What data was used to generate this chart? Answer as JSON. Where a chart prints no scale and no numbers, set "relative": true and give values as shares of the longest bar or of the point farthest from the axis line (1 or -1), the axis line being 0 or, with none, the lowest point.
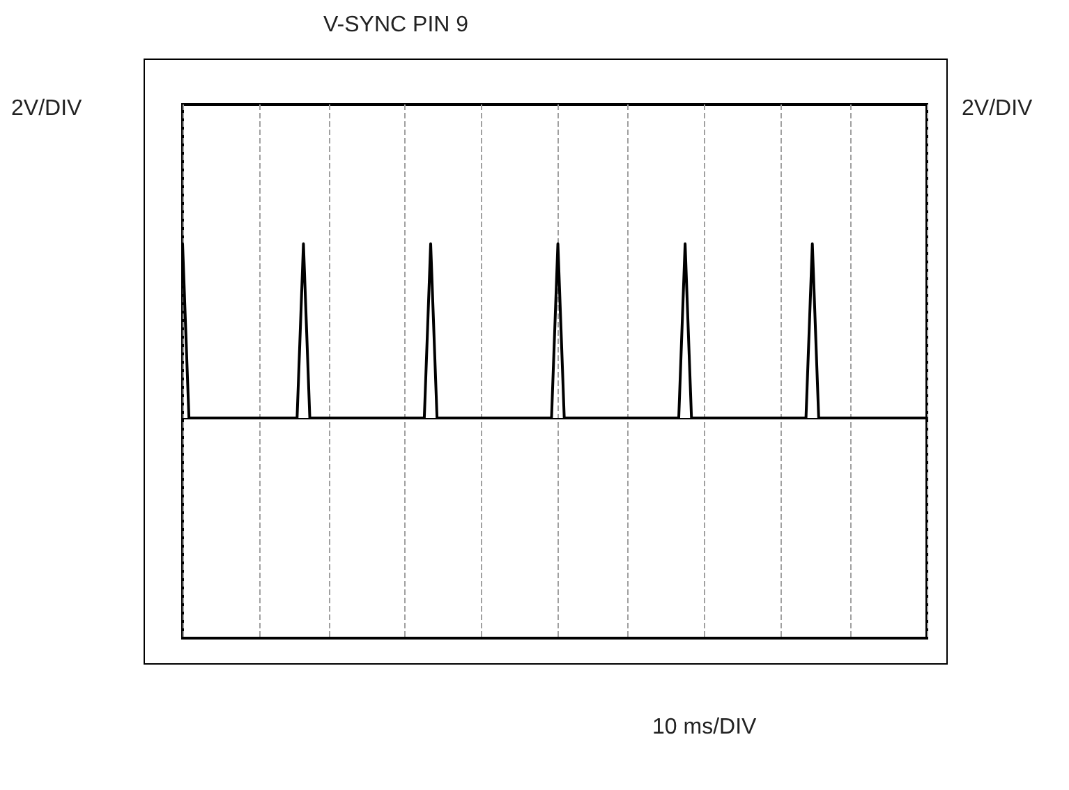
{
  "chart_data": {
    "type": "line",
    "title": "V-SYNC PIN 9",
    "annotations": [
      "2V/DIV",
      "2V/DIV",
      "10 ms/DIV"
    ],
    "relative": true,
    "grid": "x",
    "marker": "none",
    "line_style": "solid",
    "categories": [
      null,
      null,
      null,
      null,
      null,
      null,
      null,
      null,
      null,
      null,
      null,
      null,
      null,
      null,
      null,
      null,
      null,
      null,
      null,
      null,
      null,
      null,
      null,
      null,
      null,
      null,
      null,
      null,
      null,
      null,
      null,
      null,
      null,
      null,
      null,
      null,
      null,
      null,
      null,
      null,
      null,
      null,
      null,
      null,
      null,
      null,
      null,
      null,
      null,
      null,
      null,
      null,
      null,
      null,
      null,
      null,
      null,
      null,
      null,
      null,
      null,
      null,
      null,
      null,
      null,
      null,
      null,
      null,
      null,
      null,
      null,
      null,
      null,
      null,
      null,
      null,
      null,
      null,
      null,
      null,
      null,
      null,
      null,
      null,
      null,
      null,
      null,
      null,
      null,
      null,
      null,
      null,
      null,
      null,
      null,
      null,
      null,
      null,
      null,
      null,
      null,
      null,
      null,
      null,
      null,
      null,
      null,
      null,
      null,
      null,
      null,
      null,
      null,
      null,
      null,
      null,
      null,
      null
    ],
    "series": [
      {
        "color": "#000000",
        "values": [
          1,
          0,
          0,
          0,
          0,
          0,
          0,
          0,
          0,
          0,
          0,
          0,
          0,
          0,
          0,
          0,
          0,
          0,
          0,
          1,
          0,
          0,
          0,
          0,
          0,
          0,
          0,
          0,
          0,
          0,
          0,
          0,
          0,
          0,
          0,
          0,
          0,
          0,
          0,
          1,
          0,
          0,
          0,
          0,
          0,
          0,
          0,
          0,
          0,
          0,
          0,
          0,
          0,
          0,
          0,
          0,
          0,
          0,
          0,
          1,
          0,
          0,
          0,
          0,
          0,
          0,
          0,
          0,
          0,
          0,
          0,
          0,
          0,
          0,
          0,
          0,
          0,
          0,
          0,
          1,
          0,
          0,
          0,
          0,
          0,
          0,
          0,
          0,
          0,
          0,
          0,
          0,
          0,
          0,
          0,
          0,
          0,
          0,
          0,
          1,
          0,
          0,
          0,
          0,
          0,
          0,
          0,
          0,
          0,
          0,
          0,
          0,
          0,
          0,
          0,
          0,
          0,
          0
        ]
      }
    ]
  }
}
